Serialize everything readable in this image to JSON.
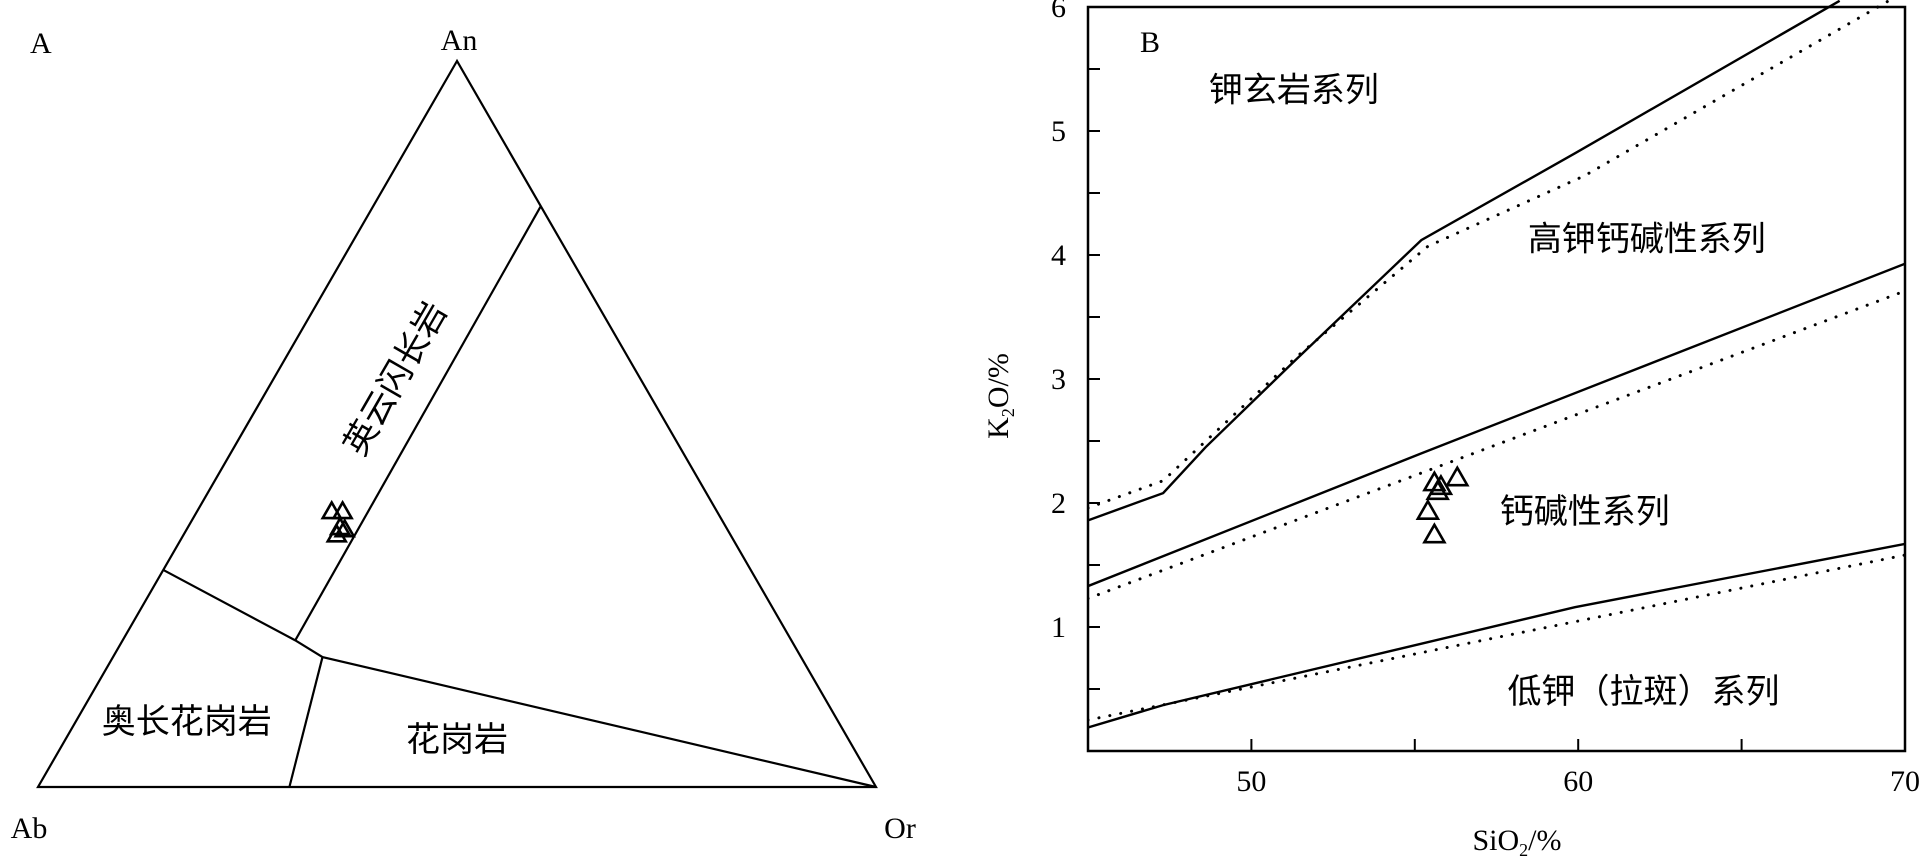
{
  "chart_data": [
    {
      "type": "ternary",
      "panel_label": "A",
      "vertices": {
        "top": "An",
        "left": "Ab",
        "right": "Or"
      },
      "boundaries": [
        {
          "points": [
            [
              0.8,
              0.0,
              0.2
            ],
            [
              0.202,
              0.592,
              0.206
            ]
          ]
        },
        {
          "points": [
            [
              0.299,
              0.701,
              0.0
            ],
            [
              0.202,
              0.592,
              0.206
            ],
            [
              0.179,
              0.571,
              0.25
            ],
            [
              0.0,
              0.0,
              1.0
            ]
          ]
        },
        {
          "points": [
            [
              0.179,
              0.571,
              0.25
            ],
            [
              0.0,
              0.7,
              0.3
            ]
          ]
        }
      ],
      "field_labels": [
        {
          "text": "英云闪长岩",
          "an": 0.56,
          "ab": 0.29,
          "or": 0.15,
          "rotate": -60
        },
        {
          "text": "奥长花岗岩",
          "an": 0.085,
          "ab": 0.78,
          "or": 0.135,
          "rotate": 0
        },
        {
          "text": "花岗岩",
          "an": 0.06,
          "ab": 0.47,
          "or": 0.47,
          "rotate": 0
        }
      ],
      "points_note_order": "An, Ab, Or fractions",
      "points": [
        [
          0.379,
          0.46,
          0.161
        ],
        [
          0.379,
          0.447,
          0.174
        ],
        [
          0.357,
          0.461,
          0.182
        ],
        [
          0.347,
          0.47,
          0.183
        ],
        [
          0.354,
          0.457,
          0.189
        ]
      ],
      "marker": "open-triangle"
    },
    {
      "type": "line",
      "panel_label": "B",
      "xlabel": "SiO2/%",
      "ylabel": "K2O/%",
      "xlim": [
        45,
        70
      ],
      "ylim": [
        0,
        6
      ],
      "xticks": [
        50,
        60,
        70
      ],
      "yticks": [
        1,
        2,
        3,
        4,
        5,
        6
      ],
      "grid": false,
      "series": [
        {
          "style": "solid",
          "x": [
            45,
            47.3,
            48.6,
            51.3,
            55.2,
            59.9,
            68.0
          ],
          "y": [
            1.86,
            2.08,
            2.45,
            3.14,
            4.12,
            4.82,
            6.05
          ]
        },
        {
          "style": "dotted",
          "x": [
            45,
            47.3,
            51.3,
            55.4,
            60.2,
            69.5
          ],
          "y": [
            1.96,
            2.18,
            3.16,
            4.07,
            4.64,
            6.05
          ]
        },
        {
          "style": "solid",
          "x": [
            45,
            55.2,
            70
          ],
          "y": [
            1.33,
            2.4,
            3.93
          ]
        },
        {
          "style": "dotted",
          "x": [
            45,
            70
          ],
          "y": [
            1.23,
            3.71
          ]
        },
        {
          "style": "solid",
          "x": [
            45,
            47.3,
            59.9,
            70
          ],
          "y": [
            0.19,
            0.37,
            1.16,
            1.67
          ]
        },
        {
          "style": "dotted",
          "x": [
            45,
            70
          ],
          "y": [
            0.25,
            1.58
          ]
        }
      ],
      "field_labels": [
        {
          "text": "钾玄岩系列",
          "x": 51.3,
          "y": 5.3
        },
        {
          "text": "高钾钙碱性系列",
          "x": 62.1,
          "y": 4.1
        },
        {
          "text": "钙碱性系列",
          "x": 60.2,
          "y": 1.9
        },
        {
          "text": "低钾（拉斑）系列",
          "x": 62.0,
          "y": 0.45
        }
      ],
      "points": {
        "x": [
          56.3,
          55.6,
          55.8,
          55.7,
          55.4,
          55.6
        ],
        "y": [
          2.2,
          2.16,
          2.13,
          2.09,
          1.93,
          1.74
        ]
      },
      "marker": "open-triangle"
    }
  ]
}
